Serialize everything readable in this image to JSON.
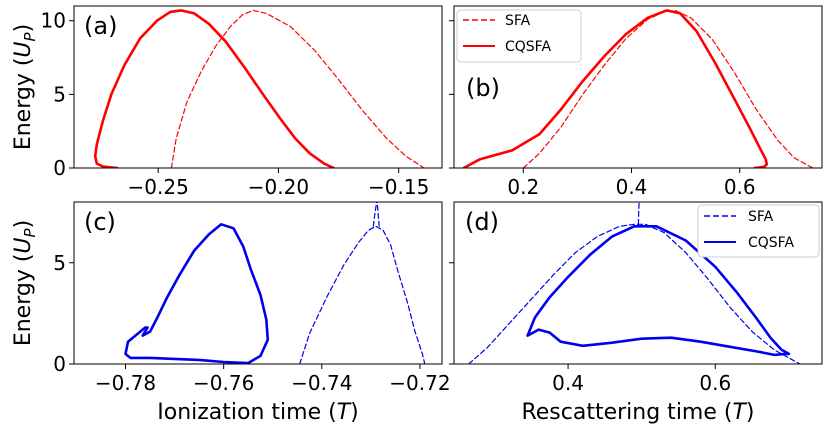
{
  "chart_data": [
    {
      "panel": "(a)",
      "type": "line",
      "xlabel": "",
      "ylabel": "Energy (U_P)",
      "xlim": [
        -0.285,
        -0.132
      ],
      "ylim": [
        0,
        11
      ],
      "xticks": [
        -0.25,
        -0.2,
        -0.15
      ],
      "xtick_labels": [
        "−0.25",
        "−0.20",
        "−0.15"
      ],
      "yticks": [
        0,
        5,
        10
      ],
      "ytick_labels": [
        "0",
        "5",
        "10"
      ],
      "color": "#ff0000",
      "legend": null,
      "series": [
        {
          "name": "SFA",
          "style": "dashed",
          "x": [
            -0.2445,
            -0.2425,
            -0.238,
            -0.232,
            -0.226,
            -0.22,
            -0.215,
            -0.2105,
            -0.205,
            -0.195,
            -0.185,
            -0.175,
            -0.165,
            -0.155,
            -0.147,
            -0.1395
          ],
          "y": [
            0,
            2.0,
            4.5,
            6.6,
            8.3,
            9.6,
            10.4,
            10.7,
            10.5,
            9.6,
            8.0,
            6.0,
            3.9,
            2.0,
            0.8,
            0
          ]
        },
        {
          "name": "CQSFA",
          "style": "solid",
          "x": [
            -0.267,
            -0.273,
            -0.2755,
            -0.2762,
            -0.2755,
            -0.273,
            -0.2695,
            -0.264,
            -0.2575,
            -0.2505,
            -0.245,
            -0.2405,
            -0.235,
            -0.229,
            -0.222,
            -0.214,
            -0.206,
            -0.199,
            -0.193,
            -0.187,
            -0.181,
            -0.177
          ],
          "y": [
            0,
            0.1,
            0.3,
            0.8,
            1.6,
            3.2,
            5.0,
            7.0,
            8.8,
            10.0,
            10.6,
            10.7,
            10.5,
            9.8,
            8.6,
            6.8,
            4.9,
            3.3,
            2.0,
            1.0,
            0.3,
            0
          ]
        }
      ]
    },
    {
      "panel": "(b)",
      "type": "line",
      "xlabel": "",
      "ylabel": "",
      "xlim": [
        0.072,
        0.752
      ],
      "ylim": [
        0,
        11
      ],
      "xticks": [
        0.2,
        0.4,
        0.6
      ],
      "xtick_labels": [
        "0.2",
        "0.4",
        "0.6"
      ],
      "yticks": [
        0,
        5,
        10
      ],
      "ytick_labels": [],
      "color": "#ff0000",
      "legend": {
        "position": "top-left",
        "entries": [
          {
            "label": "SFA",
            "style": "dashed"
          },
          {
            "label": "CQSFA",
            "style": "solid"
          }
        ]
      },
      "series": [
        {
          "name": "SFA",
          "style": "dashed",
          "x": [
            0.2,
            0.23,
            0.27,
            0.31,
            0.35,
            0.39,
            0.43,
            0.46,
            0.48,
            0.51,
            0.55,
            0.59,
            0.63,
            0.67,
            0.7,
            0.735
          ],
          "y": [
            0,
            1.0,
            2.8,
            5.0,
            7.0,
            8.8,
            10.1,
            10.6,
            10.7,
            10.2,
            8.7,
            6.5,
            4.0,
            1.9,
            0.7,
            0
          ]
        },
        {
          "name": "CQSFA",
          "style": "solid",
          "x": [
            0.09,
            0.12,
            0.18,
            0.23,
            0.27,
            0.31,
            0.35,
            0.39,
            0.43,
            0.465,
            0.49,
            0.52,
            0.555,
            0.59,
            0.62,
            0.638,
            0.648,
            0.65,
            0.645,
            0.628
          ],
          "y": [
            0,
            0.6,
            1.2,
            2.3,
            4.0,
            5.9,
            7.6,
            9.1,
            10.2,
            10.7,
            10.5,
            9.3,
            7.1,
            4.7,
            2.6,
            1.3,
            0.6,
            0.25,
            0.08,
            0
          ]
        }
      ]
    },
    {
      "panel": "(c)",
      "type": "line",
      "xlabel": "Ionization time (T)",
      "ylabel": "Energy (U_P)",
      "xlim": [
        -0.7905,
        -0.7155
      ],
      "ylim": [
        0,
        8
      ],
      "xticks": [
        -0.78,
        -0.76,
        -0.74,
        -0.72
      ],
      "xtick_labels": [
        "−0.78",
        "−0.76",
        "−0.74",
        "−0.72"
      ],
      "yticks": [
        0,
        5
      ],
      "ytick_labels": [
        "0",
        "5"
      ],
      "color": "#0000ee",
      "legend": null,
      "series": [
        {
          "name": "SFA",
          "style": "dashed",
          "x": [
            -0.7445,
            -0.7425,
            -0.739,
            -0.7355,
            -0.7325,
            -0.7305,
            -0.729,
            -0.7275,
            -0.726,
            -0.7245,
            -0.7225,
            -0.721,
            -0.7195,
            -0.719
          ],
          "y": [
            0,
            1.5,
            3.3,
            4.9,
            6.0,
            6.6,
            6.8,
            6.6,
            5.9,
            4.6,
            3.0,
            1.6,
            0.5,
            0
          ]
        },
        {
          "name": "SFA branch",
          "style": "dashed",
          "x": [
            -0.7295,
            -0.7292,
            -0.7288
          ],
          "y": [
            6.8,
            7.4,
            8.0
          ]
        },
        {
          "name": "SFA branch",
          "style": "dashed",
          "x": [
            -0.7283,
            -0.7285,
            -0.7287
          ],
          "y": [
            6.8,
            7.4,
            8.0
          ]
        },
        {
          "name": "CQSFA",
          "style": "solid",
          "x": [
            -0.755,
            -0.76,
            -0.765,
            -0.77,
            -0.775,
            -0.779,
            -0.78,
            -0.7795,
            -0.776,
            -0.7755,
            -0.7765,
            -0.775,
            -0.7735,
            -0.7715,
            -0.769,
            -0.766,
            -0.763,
            -0.7605,
            -0.758,
            -0.756,
            -0.7545,
            -0.7525,
            -0.7513,
            -0.751,
            -0.7525,
            -0.755
          ],
          "y": [
            0.05,
            0.1,
            0.2,
            0.25,
            0.3,
            0.3,
            0.5,
            1.1,
            1.8,
            1.8,
            1.4,
            1.6,
            2.3,
            3.3,
            4.4,
            5.6,
            6.4,
            6.9,
            6.7,
            5.8,
            4.7,
            3.4,
            2.2,
            1.2,
            0.4,
            0.05
          ]
        }
      ]
    },
    {
      "panel": "(d)",
      "type": "line",
      "xlabel": "Rescattering time (T)",
      "ylabel": "",
      "xlim": [
        0.245,
        0.745
      ],
      "ylim": [
        0,
        8
      ],
      "xticks": [
        0.4,
        0.6
      ],
      "xtick_labels": [
        "0.4",
        "0.6"
      ],
      "yticks": [
        0,
        5
      ],
      "ytick_labels": [],
      "color": "#0000ee",
      "legend": {
        "position": "top-right",
        "entries": [
          {
            "label": "SFA",
            "style": "dashed"
          },
          {
            "label": "CQSFA",
            "style": "solid"
          }
        ]
      },
      "series": [
        {
          "name": "SFA",
          "style": "dashed",
          "x": [
            0.265,
            0.29,
            0.32,
            0.35,
            0.38,
            0.41,
            0.44,
            0.47,
            0.49,
            0.505,
            0.53,
            0.56,
            0.59,
            0.62,
            0.65,
            0.68,
            0.7,
            0.715
          ],
          "y": [
            0,
            0.8,
            2.0,
            3.2,
            4.4,
            5.5,
            6.3,
            6.8,
            6.9,
            6.9,
            6.5,
            5.5,
            4.2,
            2.8,
            1.6,
            0.7,
            0.3,
            0
          ]
        },
        {
          "name": "SFA branch",
          "style": "dashed",
          "x": [
            0.4955,
            0.496,
            0.4965
          ],
          "y": [
            6.9,
            7.5,
            8.0
          ]
        },
        {
          "name": "CQSFA",
          "style": "solid",
          "x": [
            0.695,
            0.68,
            0.66,
            0.62,
            0.58,
            0.54,
            0.5,
            0.46,
            0.42,
            0.39,
            0.375,
            0.36,
            0.345,
            0.355,
            0.375,
            0.4,
            0.43,
            0.46,
            0.49,
            0.52,
            0.56,
            0.6,
            0.63,
            0.655,
            0.675,
            0.69,
            0.7,
            0.695
          ],
          "y": [
            0.5,
            0.45,
            0.6,
            0.85,
            1.1,
            1.3,
            1.25,
            1.05,
            0.9,
            1.1,
            1.55,
            1.7,
            1.4,
            2.3,
            3.3,
            4.3,
            5.4,
            6.3,
            6.8,
            6.8,
            6.1,
            4.8,
            3.5,
            2.3,
            1.3,
            0.7,
            0.5,
            0.5
          ]
        }
      ]
    }
  ]
}
